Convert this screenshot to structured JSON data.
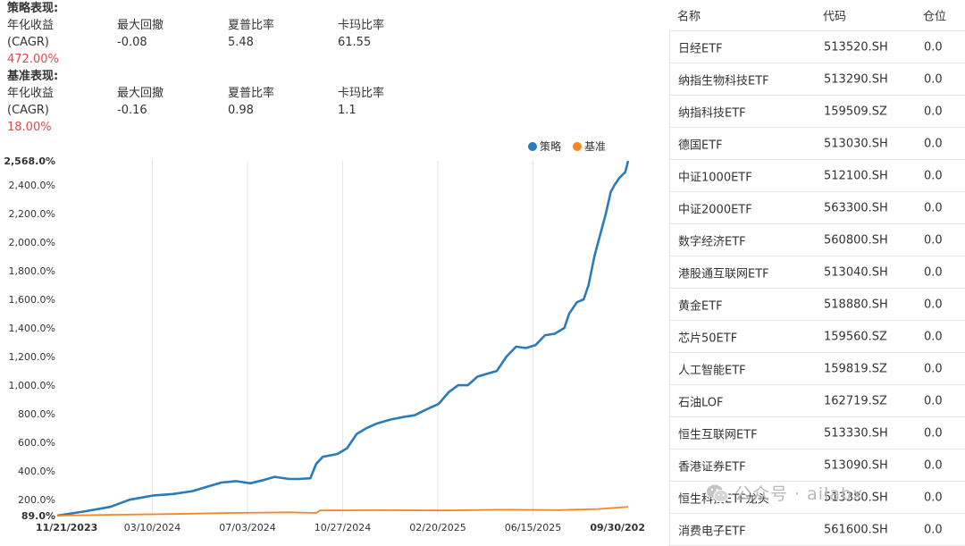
{
  "strategy": {
    "title": "策略表现:",
    "headers": [
      "年化收益",
      "最大回撤",
      "夏普比率",
      "卡玛比率"
    ],
    "cagr_label": "(CAGR)",
    "values": [
      "-0.08",
      "5.48",
      "61.55"
    ],
    "cagr": "472.00%"
  },
  "benchmark": {
    "title": "基准表现:",
    "headers": [
      "年化收益",
      "最大回撤",
      "夏普比率",
      "卡玛比率"
    ],
    "cagr_label": "(CAGR)",
    "values": [
      "-0.16",
      "0.98",
      "1.1"
    ],
    "cagr": "18.00%"
  },
  "chart_data": {
    "type": "line",
    "legend": {
      "placement": "top-right"
    },
    "y_ticks": [
      "2,568.0%",
      "2,400.0%",
      "2,200.0%",
      "2,000.0%",
      "1,800.0%",
      "1,600.0%",
      "1,400.0%",
      "1,200.0%",
      "1,000.0%",
      "800.0%",
      "600.0%",
      "400.0%",
      "200.0%",
      "89.0%"
    ],
    "x_ticks": [
      "11/21/2023",
      "03/10/2024",
      "07/03/2024",
      "10/27/2024",
      "02/20/2025",
      "06/15/2025",
      "09/30/202"
    ],
    "ylim": [
      89,
      2568
    ],
    "grid": "vertical",
    "series": [
      {
        "name": "策略",
        "color": "#2b7bb9",
        "points": [
          [
            0,
            89
          ],
          [
            30,
            120
          ],
          [
            55,
            150
          ],
          [
            75,
            200
          ],
          [
            100,
            230
          ],
          [
            120,
            240
          ],
          [
            140,
            260
          ],
          [
            155,
            290
          ],
          [
            170,
            320
          ],
          [
            185,
            330
          ],
          [
            200,
            315
          ],
          [
            215,
            340
          ],
          [
            225,
            360
          ],
          [
            240,
            345
          ],
          [
            250,
            345
          ],
          [
            262,
            350
          ],
          [
            268,
            450
          ],
          [
            275,
            500
          ],
          [
            290,
            520
          ],
          [
            300,
            560
          ],
          [
            310,
            660
          ],
          [
            320,
            700
          ],
          [
            330,
            730
          ],
          [
            345,
            760
          ],
          [
            360,
            780
          ],
          [
            370,
            790
          ],
          [
            382,
            830
          ],
          [
            395,
            870
          ],
          [
            405,
            950
          ],
          [
            415,
            1000
          ],
          [
            425,
            1000
          ],
          [
            435,
            1060
          ],
          [
            445,
            1080
          ],
          [
            455,
            1100
          ],
          [
            465,
            1200
          ],
          [
            475,
            1270
          ],
          [
            485,
            1260
          ],
          [
            495,
            1280
          ],
          [
            505,
            1350
          ],
          [
            515,
            1360
          ],
          [
            525,
            1400
          ],
          [
            530,
            1500
          ],
          [
            538,
            1580
          ],
          [
            545,
            1600
          ],
          [
            550,
            1700
          ],
          [
            556,
            1900
          ],
          [
            562,
            2050
          ],
          [
            568,
            2200
          ],
          [
            573,
            2350
          ],
          [
            577,
            2400
          ],
          [
            582,
            2450
          ],
          [
            588,
            2490
          ],
          [
            591,
            2568
          ]
        ]
      },
      {
        "name": "基准",
        "color": "#f5871f",
        "points": [
          [
            0,
            89
          ],
          [
            60,
            95
          ],
          [
            120,
            100
          ],
          [
            180,
            108
          ],
          [
            240,
            112
          ],
          [
            268,
            108
          ],
          [
            272,
            125
          ],
          [
            330,
            127
          ],
          [
            400,
            125
          ],
          [
            460,
            130
          ],
          [
            520,
            128
          ],
          [
            560,
            135
          ],
          [
            591,
            150
          ]
        ]
      }
    ]
  },
  "table": {
    "headers": [
      "名称",
      "代码",
      "仓位"
    ],
    "rows": [
      [
        "日经ETF",
        "513520.SH",
        "0.0"
      ],
      [
        "纳指生物科技ETF",
        "513290.SH",
        "0.0"
      ],
      [
        "纳指科技ETF",
        "159509.SZ",
        "0.0"
      ],
      [
        "德国ETF",
        "513030.SH",
        "0.0"
      ],
      [
        "中证1000ETF",
        "512100.SH",
        "0.0"
      ],
      [
        "中证2000ETF",
        "563300.SH",
        "0.0"
      ],
      [
        "数字经济ETF",
        "560800.SH",
        "0.0"
      ],
      [
        "港股通互联网ETF",
        "513040.SH",
        "0.0"
      ],
      [
        "黄金ETF",
        "518880.SH",
        "0.0"
      ],
      [
        "芯片50ETF",
        "159560.SZ",
        "0.0"
      ],
      [
        "人工智能ETF",
        "159819.SZ",
        "0.0"
      ],
      [
        "石油LOF",
        "162719.SZ",
        "0.0"
      ],
      [
        "恒生互联网ETF",
        "513330.SH",
        "0.0"
      ],
      [
        "香港证券ETF",
        "513090.SH",
        "0.0"
      ],
      [
        "恒生科技ETF龙头",
        "513380.SH",
        "0.0"
      ],
      [
        "消费电子ETF",
        "561600.SH",
        "0.0"
      ]
    ]
  },
  "watermark": {
    "text": "公众号 · ailabx",
    "icon": "wechat-icon"
  }
}
